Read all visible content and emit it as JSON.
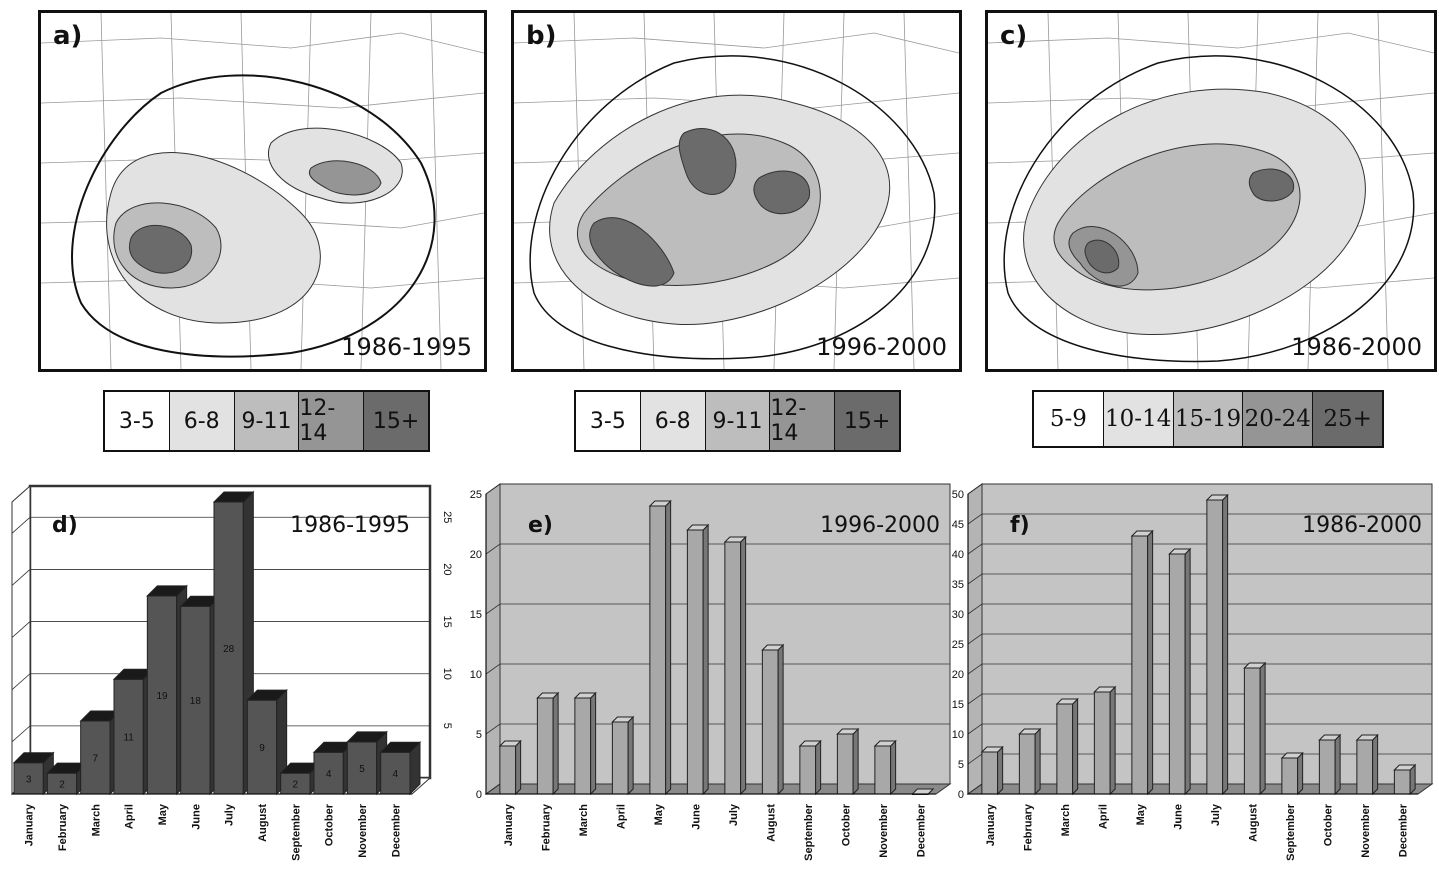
{
  "maps": [
    {
      "letter": "a)",
      "period": "1986-1995",
      "legend": {
        "style": "sans",
        "items": [
          {
            "label": "3-5",
            "color": "#ffffff"
          },
          {
            "label": "6-8",
            "color": "#e2e2e2"
          },
          {
            "label": "9-11",
            "color": "#bdbdbd"
          },
          {
            "label": "12-14",
            "color": "#959595"
          },
          {
            "label": "15+",
            "color": "#6b6b6b"
          }
        ]
      }
    },
    {
      "letter": "b)",
      "period": "1996-2000",
      "legend": {
        "style": "sans",
        "items": [
          {
            "label": "3-5",
            "color": "#ffffff"
          },
          {
            "label": "6-8",
            "color": "#e2e2e2"
          },
          {
            "label": "9-11",
            "color": "#bdbdbd"
          },
          {
            "label": "12-14",
            "color": "#959595"
          },
          {
            "label": "15+",
            "color": "#6b6b6b"
          }
        ]
      }
    },
    {
      "letter": "c)",
      "period": "1986-2000",
      "legend": {
        "style": "serif",
        "items": [
          {
            "label": "5-9",
            "color": "#ffffff"
          },
          {
            "label": "10-14",
            "color": "#e2e2e2"
          },
          {
            "label": "15-19",
            "color": "#bdbdbd"
          },
          {
            "label": "20-24",
            "color": "#959595"
          },
          {
            "label": "25+",
            "color": "#6b6b6b"
          }
        ]
      }
    }
  ],
  "chart_data": [
    {
      "type": "bar",
      "panel": "d)",
      "title": "1986-1995",
      "categories": [
        "January",
        "February",
        "March",
        "April",
        "May",
        "June",
        "July",
        "August",
        "September",
        "October",
        "November",
        "December"
      ],
      "values": [
        3,
        2,
        7,
        11,
        19,
        18,
        28,
        9,
        2,
        4,
        5,
        4
      ],
      "data_labels": [
        "3",
        "2",
        "7",
        "11",
        "19",
        "18",
        "28",
        "9",
        "2",
        "4",
        "5",
        "4"
      ],
      "yticks": [
        "5",
        "10",
        "15",
        "20",
        "25"
      ],
      "ylim": [
        0,
        28
      ],
      "bar_color": "#555555",
      "grid": true
    },
    {
      "type": "bar",
      "panel": "e)",
      "title": "1996-2000",
      "categories": [
        "January",
        "February",
        "March",
        "April",
        "May",
        "June",
        "July",
        "August",
        "September",
        "October",
        "November",
        "December"
      ],
      "values": [
        4,
        8,
        8,
        6,
        24,
        22,
        21,
        12,
        4,
        5,
        4,
        0
      ],
      "yticks": [
        "0",
        "5",
        "10",
        "15",
        "20",
        "25"
      ],
      "ylim": [
        0,
        25
      ],
      "bar_color": "#a8a8a8",
      "background": "#c4c4c4",
      "grid": true
    },
    {
      "type": "bar",
      "panel": "f)",
      "title": "1986-2000",
      "categories": [
        "January",
        "February",
        "March",
        "April",
        "May",
        "June",
        "July",
        "August",
        "September",
        "October",
        "November",
        "December"
      ],
      "values": [
        7,
        10,
        15,
        17,
        43,
        40,
        49,
        21,
        6,
        9,
        9,
        4
      ],
      "yticks": [
        "0",
        "5",
        "10",
        "15",
        "20",
        "25",
        "30",
        "35",
        "40",
        "45",
        "50"
      ],
      "ylim": [
        0,
        50
      ],
      "bar_color": "#a8a8a8",
      "background": "#c4c4c4",
      "grid": true
    }
  ]
}
